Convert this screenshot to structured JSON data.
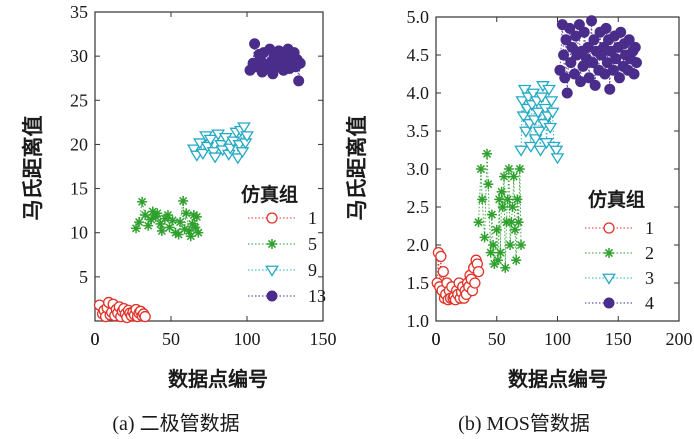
{
  "figure": {
    "captions": [
      "(a) 二极管数据",
      "(b) MOS管数据"
    ]
  },
  "chart_data": [
    {
      "type": "scatter",
      "panel": "a",
      "caption": "(a) 二极管数据",
      "xlabel": "数据点编号",
      "ylabel": "马氏距离值",
      "xlim": [
        0,
        150
      ],
      "ylim": [
        0,
        35
      ],
      "xticks": [
        0,
        50,
        100,
        150
      ],
      "yticks": [
        5,
        10,
        15,
        20,
        25,
        30,
        35
      ],
      "grid": false,
      "legend": {
        "title": "仿真组",
        "placement": "right-middle"
      },
      "series": [
        {
          "name": "1",
          "color": "#e0332a",
          "marker": "open-circle",
          "points": [
            [
              3,
              1.8
            ],
            [
              5,
              0.8
            ],
            [
              6,
              1.2
            ],
            [
              7,
              0.5
            ],
            [
              8,
              1.5
            ],
            [
              9,
              2.1
            ],
            [
              10,
              0.7
            ],
            [
              11,
              1.0
            ],
            [
              12,
              1.9
            ],
            [
              13,
              0.6
            ],
            [
              14,
              1.3
            ],
            [
              15,
              0.9
            ],
            [
              16,
              1.6
            ],
            [
              17,
              0.5
            ],
            [
              18,
              1.1
            ],
            [
              19,
              1.4
            ],
            [
              20,
              0.8
            ],
            [
              21,
              0.4
            ],
            [
              22,
              1.2
            ],
            [
              23,
              0.9
            ],
            [
              24,
              0.6
            ],
            [
              25,
              1.0
            ],
            [
              26,
              0.7
            ],
            [
              27,
              1.3
            ],
            [
              28,
              0.5
            ],
            [
              29,
              0.9
            ],
            [
              30,
              1.1
            ],
            [
              31,
              0.6
            ],
            [
              32,
              0.8
            ],
            [
              33,
              0.5
            ]
          ]
        },
        {
          "name": "5",
          "color": "#2ea02c",
          "marker": "asterisk",
          "points": [
            [
              27,
              10.5
            ],
            [
              29,
              11.2
            ],
            [
              31,
              13.5
            ],
            [
              33,
              12.0
            ],
            [
              35,
              10.8
            ],
            [
              37,
              11.5
            ],
            [
              38,
              12.4
            ],
            [
              40,
              11.8
            ],
            [
              41,
              12.2
            ],
            [
              43,
              11.0
            ],
            [
              44,
              10.2
            ],
            [
              46,
              11.6
            ],
            [
              48,
              12.0
            ],
            [
              49,
              10.6
            ],
            [
              51,
              11.4
            ],
            [
              53,
              10.0
            ],
            [
              55,
              9.8
            ],
            [
              56,
              11.2
            ],
            [
              58,
              13.6
            ],
            [
              59,
              10.4
            ],
            [
              60,
              12.2
            ],
            [
              62,
              10.2
            ],
            [
              63,
              9.6
            ],
            [
              64,
              11.0
            ],
            [
              65,
              12.0
            ],
            [
              66,
              10.6
            ],
            [
              67,
              11.8
            ],
            [
              68,
              10.0
            ]
          ]
        },
        {
          "name": "9",
          "color": "#25a9c4",
          "marker": "open-down-triangle",
          "points": [
            [
              65,
              19.5
            ],
            [
              67,
              18.8
            ],
            [
              69,
              20.2
            ],
            [
              71,
              19.0
            ],
            [
              73,
              21.0
            ],
            [
              74,
              19.8
            ],
            [
              76,
              20.6
            ],
            [
              78,
              19.2
            ],
            [
              79,
              18.6
            ],
            [
              81,
              21.2
            ],
            [
              83,
              20.0
            ],
            [
              84,
              19.4
            ],
            [
              86,
              20.8
            ],
            [
              88,
              18.9
            ],
            [
              89,
              19.6
            ],
            [
              91,
              20.4
            ],
            [
              93,
              21.4
            ],
            [
              94,
              18.5
            ],
            [
              95,
              20.0
            ],
            [
              96,
              21.6
            ],
            [
              97,
              19.2
            ],
            [
              98,
              22.0
            ],
            [
              99,
              20.2
            ],
            [
              100,
              21.0
            ]
          ]
        },
        {
          "name": "13",
          "color": "#4a2c8a",
          "marker": "filled-circle",
          "points": [
            [
              102,
              28.4
            ],
            [
              104,
              29.2
            ],
            [
              105,
              31.4
            ],
            [
              106,
              28.8
            ],
            [
              108,
              30.2
            ],
            [
              109,
              29.5
            ],
            [
              110,
              28.2
            ],
            [
              111,
              30.4
            ],
            [
              112,
              29.0
            ],
            [
              114,
              28.6
            ],
            [
              115,
              30.8
            ],
            [
              116,
              29.4
            ],
            [
              117,
              28.0
            ],
            [
              118,
              30.0
            ],
            [
              119,
              29.2
            ],
            [
              120,
              28.8
            ],
            [
              121,
              30.6
            ],
            [
              122,
              29.6
            ],
            [
              124,
              28.4
            ],
            [
              125,
              30.2
            ],
            [
              126,
              29.0
            ],
            [
              127,
              30.8
            ],
            [
              128,
              28.6
            ],
            [
              129,
              29.8
            ],
            [
              130,
              29.0
            ],
            [
              131,
              30.4
            ],
            [
              132,
              28.8
            ],
            [
              133,
              29.6
            ],
            [
              134,
              27.2
            ],
            [
              135,
              29.2
            ]
          ]
        }
      ]
    },
    {
      "type": "scatter",
      "panel": "b",
      "caption": "(b) MOS管数据",
      "xlabel": "数据点编号",
      "ylabel": "马氏距离值",
      "xlim": [
        0,
        200
      ],
      "ylim": [
        1.0,
        5.0
      ],
      "xticks": [
        0,
        50,
        100,
        150,
        200
      ],
      "yticks": [
        1.0,
        1.5,
        2.0,
        2.5,
        3.0,
        3.5,
        4.0,
        4.5,
        5.0
      ],
      "grid": false,
      "legend": {
        "title": "仿真组",
        "placement": "lower-right"
      },
      "series": [
        {
          "name": "1",
          "color": "#e0332a",
          "marker": "open-circle",
          "points": [
            [
              1,
              1.5
            ],
            [
              2,
              1.9
            ],
            [
              3,
              1.45
            ],
            [
              4,
              1.85
            ],
            [
              5,
              1.4
            ],
            [
              6,
              1.65
            ],
            [
              7,
              1.3
            ],
            [
              8,
              1.35
            ],
            [
              9,
              1.5
            ],
            [
              10,
              1.28
            ],
            [
              11,
              1.4
            ],
            [
              12,
              1.3
            ],
            [
              13,
              1.45
            ],
            [
              14,
              1.3
            ],
            [
              15,
              1.32
            ],
            [
              16,
              1.28
            ],
            [
              17,
              1.4
            ],
            [
              18,
              1.35
            ],
            [
              19,
              1.5
            ],
            [
              20,
              1.3
            ],
            [
              21,
              1.38
            ],
            [
              22,
              1.45
            ],
            [
              23,
              1.3
            ],
            [
              24,
              1.4
            ],
            [
              25,
              1.35
            ],
            [
              26,
              1.5
            ],
            [
              27,
              1.45
            ],
            [
              28,
              1.6
            ],
            [
              29,
              1.55
            ],
            [
              30,
              1.4
            ],
            [
              31,
              1.7
            ],
            [
              32,
              1.5
            ],
            [
              33,
              1.8
            ],
            [
              34,
              1.75
            ],
            [
              35,
              1.65
            ]
          ]
        },
        {
          "name": "2",
          "color": "#2ea02c",
          "marker": "asterisk",
          "points": [
            [
              35,
              2.3
            ],
            [
              37,
              3.0
            ],
            [
              38,
              2.6
            ],
            [
              40,
              2.1
            ],
            [
              42,
              3.2
            ],
            [
              43,
              2.8
            ],
            [
              45,
              1.9
            ],
            [
              46,
              2.4
            ],
            [
              47,
              2.0
            ],
            [
              48,
              1.75
            ],
            [
              50,
              2.2
            ],
            [
              51,
              1.8
            ],
            [
              52,
              2.6
            ],
            [
              53,
              1.9
            ],
            [
              54,
              2.7
            ],
            [
              55,
              2.5
            ],
            [
              56,
              2.9
            ],
            [
              57,
              1.7
            ],
            [
              58,
              2.3
            ],
            [
              59,
              2.6
            ],
            [
              60,
              3.0
            ],
            [
              61,
              2.0
            ],
            [
              62,
              2.3
            ],
            [
              63,
              2.5
            ],
            [
              64,
              2.9
            ],
            [
              65,
              2.2
            ],
            [
              66,
              1.8
            ],
            [
              67,
              2.6
            ],
            [
              68,
              2.3
            ],
            [
              69,
              3.0
            ],
            [
              70,
              2.0
            ]
          ]
        },
        {
          "name": "3",
          "color": "#25a9c4",
          "marker": "open-down-triangle",
          "points": [
            [
              70,
              3.25
            ],
            [
              71,
              3.9
            ],
            [
              72,
              3.7
            ],
            [
              73,
              4.05
            ],
            [
              74,
              3.5
            ],
            [
              75,
              3.8
            ],
            [
              76,
              3.95
            ],
            [
              77,
              3.6
            ],
            [
              78,
              3.3
            ],
            [
              79,
              3.85
            ],
            [
              80,
              4.0
            ],
            [
              81,
              3.65
            ],
            [
              82,
              3.4
            ],
            [
              83,
              3.9
            ],
            [
              84,
              3.75
            ],
            [
              85,
              3.5
            ],
            [
              86,
              3.25
            ],
            [
              87,
              3.95
            ],
            [
              88,
              4.1
            ],
            [
              89,
              3.6
            ],
            [
              90,
              3.8
            ],
            [
              91,
              3.35
            ],
            [
              92,
              3.7
            ],
            [
              93,
              4.05
            ],
            [
              94,
              3.55
            ],
            [
              95,
              3.9
            ],
            [
              96,
              3.75
            ],
            [
              97,
              3.3
            ],
            [
              99,
              3.25
            ],
            [
              100,
              3.15
            ]
          ]
        },
        {
          "name": "4",
          "color": "#4a2c8a",
          "marker": "filled-circle",
          "points": [
            [
              102,
              4.3
            ],
            [
              104,
              4.9
            ],
            [
              105,
              4.5
            ],
            [
              106,
              4.2
            ],
            [
              107,
              4.7
            ],
            [
              108,
              4.0
            ],
            [
              110,
              4.85
            ],
            [
              111,
              4.4
            ],
            [
              112,
              4.6
            ],
            [
              114,
              4.25
            ],
            [
              115,
              4.75
            ],
            [
              116,
              4.5
            ],
            [
              118,
              4.9
            ],
            [
              119,
              4.15
            ],
            [
              120,
              4.55
            ],
            [
              121,
              4.35
            ],
            [
              122,
              4.8
            ],
            [
              124,
              4.45
            ],
            [
              125,
              4.6
            ],
            [
              126,
              4.2
            ],
            [
              128,
              4.95
            ],
            [
              129,
              4.4
            ],
            [
              130,
              4.7
            ],
            [
              131,
              4.1
            ],
            [
              132,
              4.55
            ],
            [
              134,
              4.3
            ],
            [
              135,
              4.8
            ],
            [
              136,
              4.5
            ],
            [
              138,
              4.6
            ],
            [
              139,
              4.25
            ],
            [
              140,
              4.85
            ],
            [
              141,
              4.4
            ],
            [
              142,
              4.7
            ],
            [
              143,
              4.05
            ],
            [
              144,
              4.55
            ],
            [
              146,
              4.3
            ],
            [
              147,
              4.75
            ],
            [
              148,
              4.45
            ],
            [
              150,
              4.6
            ],
            [
              151,
              4.2
            ],
            [
              152,
              4.8
            ],
            [
              154,
              4.35
            ],
            [
              155,
              4.65
            ],
            [
              156,
              4.5
            ],
            [
              158,
              4.3
            ],
            [
              159,
              4.7
            ],
            [
              160,
              4.45
            ],
            [
              162,
              4.55
            ],
            [
              163,
              4.25
            ],
            [
              164,
              4.6
            ],
            [
              165,
              4.4
            ]
          ]
        }
      ]
    }
  ]
}
